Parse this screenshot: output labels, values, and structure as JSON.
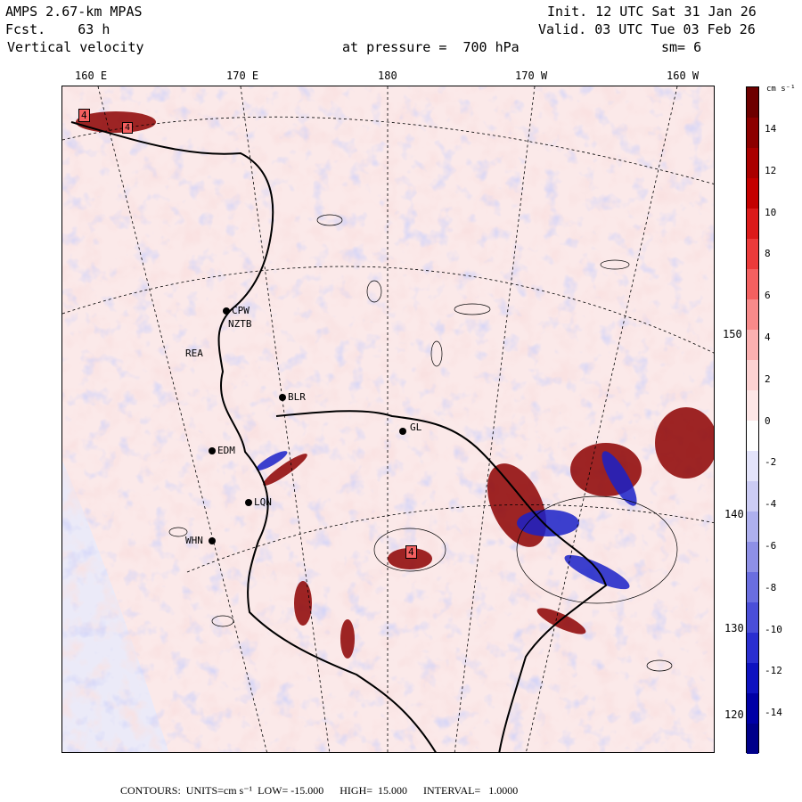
{
  "header": {
    "model": "AMPS 2.67-km MPAS",
    "forecast": "Fcst.    63 h",
    "field": "Vertical velocity",
    "init": "Init. 12 UTC Sat 31 Jan 26",
    "valid": "Valid. 03 UTC Tue 03 Feb 26",
    "pressure": "at pressure =  700 hPa",
    "smoothing": "sm= 6"
  },
  "longitude_labels": [
    "160 E",
    "170 E",
    "180",
    "170 W",
    "160 W"
  ],
  "latitude_labels": [
    "150 W",
    "140 W",
    "130 W",
    "120 W"
  ],
  "stations": [
    {
      "name": "CPW"
    },
    {
      "name": "NZTB"
    },
    {
      "name": "REA"
    },
    {
      "name": "BLR"
    },
    {
      "name": "EDM"
    },
    {
      "name": "LQN"
    },
    {
      "name": "WHN"
    },
    {
      "name": "GL"
    }
  ],
  "contour_markers": [
    "4",
    "4",
    "4"
  ],
  "colorbar": {
    "unit_label": "cm s⁻¹",
    "tick_labels": [
      "14",
      "12",
      "10",
      "8",
      "6",
      "4",
      "2",
      "0",
      "-2",
      "-4",
      "-6",
      "-8",
      "-10",
      "-12",
      "-14"
    ],
    "colors": [
      "#6e0000",
      "#8c0000",
      "#aa0000",
      "#c40000",
      "#dc1a1a",
      "#ec3a3a",
      "#f46060",
      "#f88a8a",
      "#fbb0b0",
      "#fcd2d2",
      "#fde6e6",
      "#ffffff",
      "#e4e4fa",
      "#ccccf4",
      "#aeb0ee",
      "#8e90e6",
      "#6a6ee0",
      "#4a4ed8",
      "#2a2ed0",
      "#0e12c0",
      "#0000a6",
      "#00008a"
    ]
  },
  "footer": "CONTOURS:  UNITS=cm s⁻¹  LOW= -15.000      HIGH=  15.000      INTERVAL=   1.0000",
  "chart_data": {
    "type": "heatmap",
    "title": "Vertical velocity at pressure = 700 hPa",
    "units": "cm s⁻¹",
    "range": [
      -15,
      15
    ],
    "interval": 1.0
  }
}
